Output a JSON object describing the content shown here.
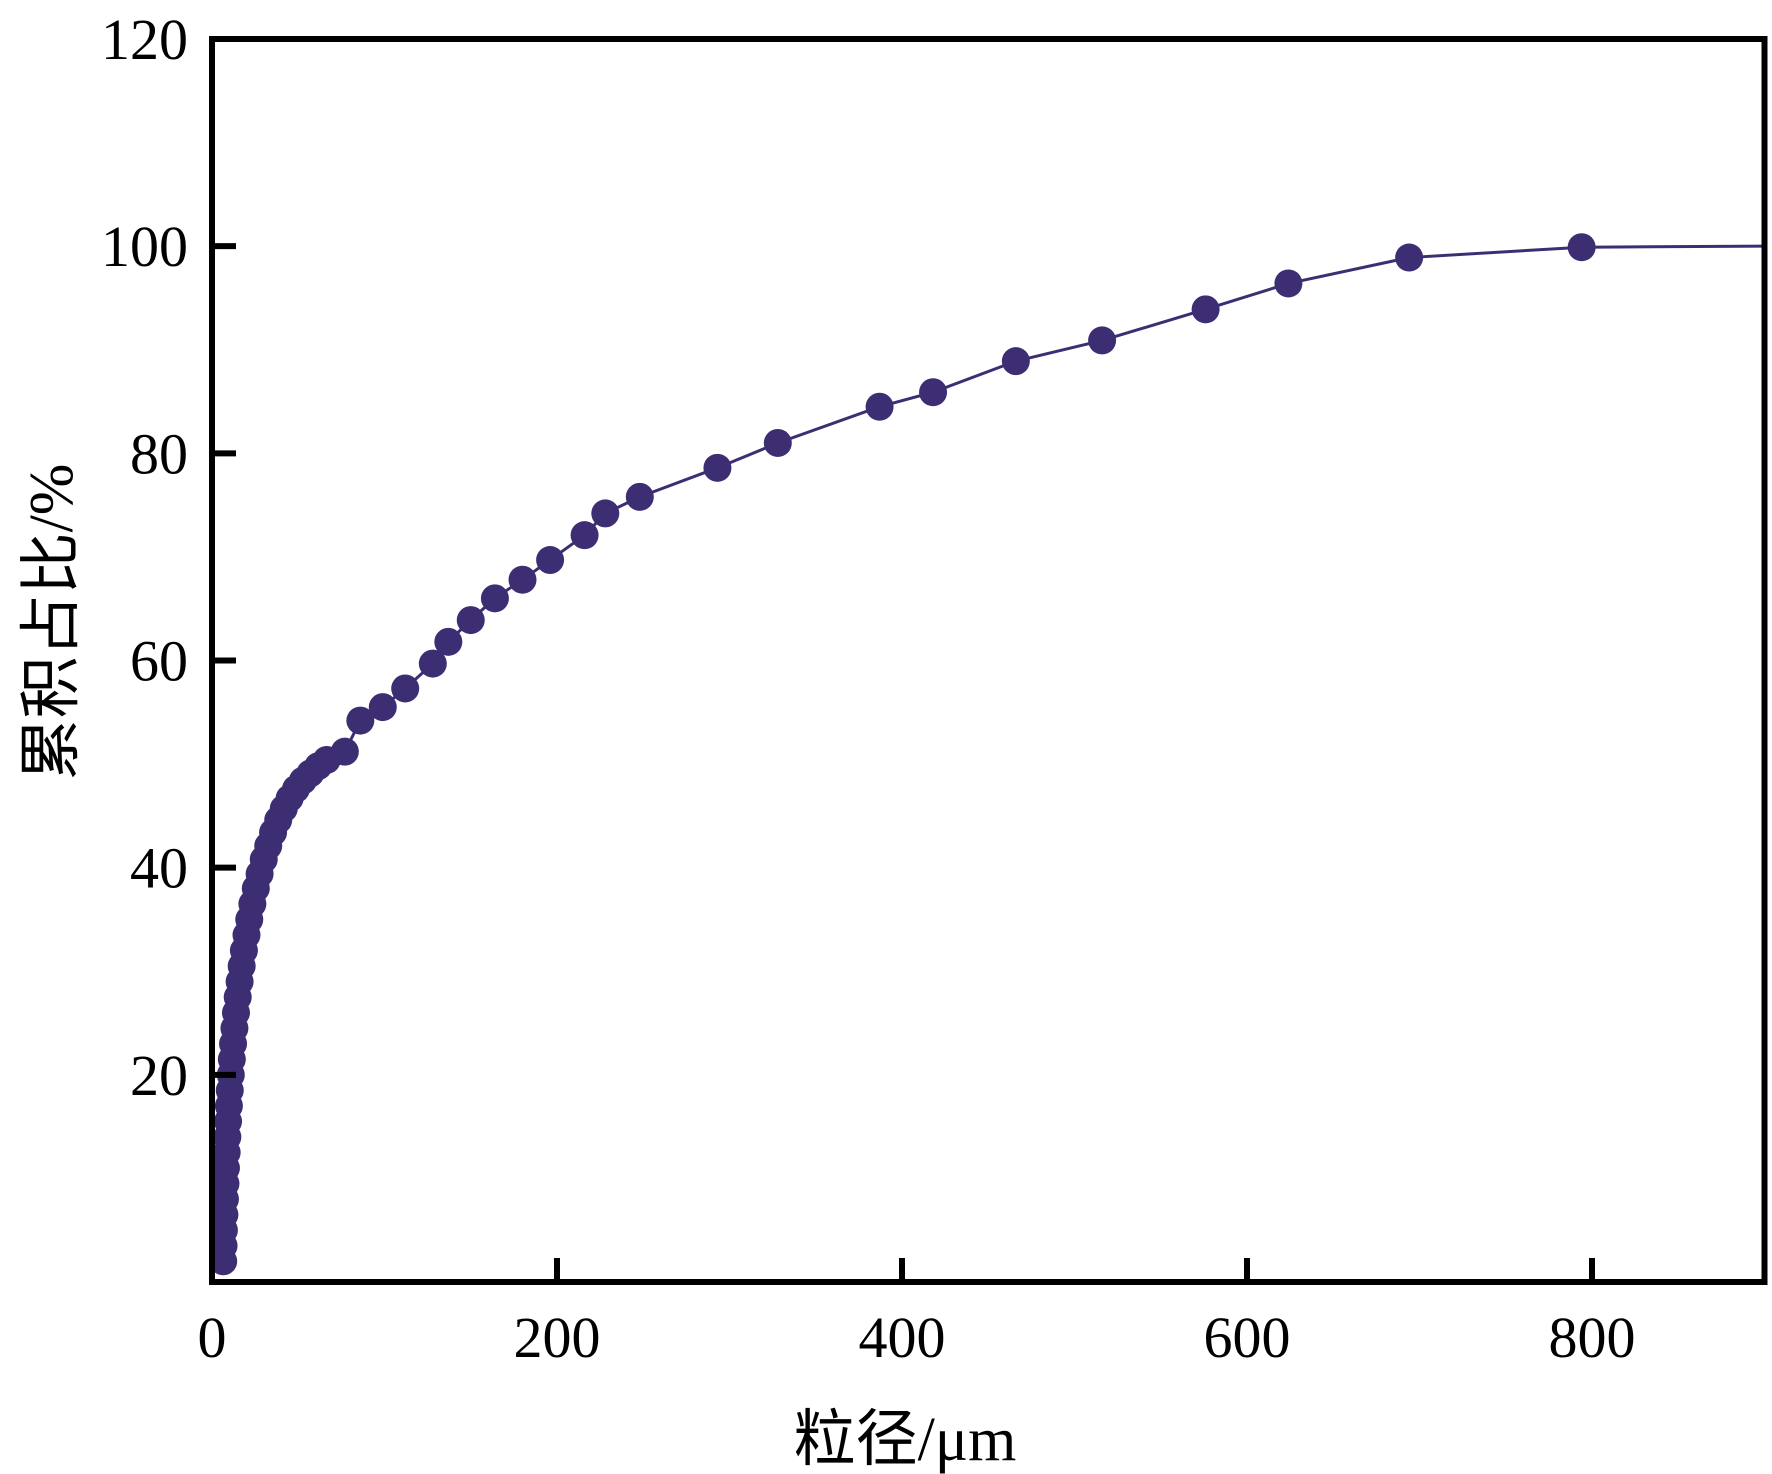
{
  "chart_data": {
    "type": "scatter",
    "title": "",
    "xlabel": "粒径/μm",
    "ylabel": "累积占比/%",
    "xlim": [
      0,
      900
    ],
    "ylim": [
      0,
      120
    ],
    "xticks": [
      0,
      200,
      400,
      600,
      800
    ],
    "yticks": [
      20,
      40,
      60,
      80,
      100,
      120
    ],
    "grid": false,
    "legend_position": "none",
    "marker_color": "#3d2e73",
    "line_color": "#3d2e73",
    "axis_color": "#000000",
    "background_color": "#ffffff",
    "marker_radius_px": 14,
    "series": [
      {
        "name": "cumulative-particle-size-distribution",
        "points": [
          [
            6.5,
            2
          ],
          [
            6.7,
            3.5
          ],
          [
            6.9,
            5
          ],
          [
            7.2,
            6.5
          ],
          [
            7.5,
            8
          ],
          [
            7.8,
            9.5
          ],
          [
            8.1,
            11
          ],
          [
            8.5,
            12.5
          ],
          [
            8.9,
            14
          ],
          [
            9.3,
            15.5
          ],
          [
            9.8,
            17
          ],
          [
            10.3,
            18.5
          ],
          [
            10.9,
            20
          ],
          [
            11.5,
            21.5
          ],
          [
            12.2,
            23
          ],
          [
            13,
            24.5
          ],
          [
            13.9,
            26
          ],
          [
            14.9,
            27.5
          ],
          [
            16,
            29
          ],
          [
            17.2,
            30.5
          ],
          [
            18.5,
            32
          ],
          [
            20,
            33.5
          ],
          [
            21.6,
            35
          ],
          [
            23.4,
            36.5
          ],
          [
            25.4,
            38
          ],
          [
            27.6,
            39.4
          ],
          [
            30,
            40.8
          ],
          [
            32.6,
            42.1
          ],
          [
            35.4,
            43.4
          ],
          [
            38.4,
            44.6
          ],
          [
            41.6,
            45.7
          ],
          [
            45,
            46.7
          ],
          [
            48.7,
            47.6
          ],
          [
            52.7,
            48.4
          ],
          [
            57,
            49.1
          ],
          [
            61.6,
            49.8
          ],
          [
            66.5,
            50.4
          ],
          [
            77,
            51.2
          ],
          [
            86,
            54.2
          ],
          [
            99,
            55.5
          ],
          [
            112,
            57.3
          ],
          [
            128,
            59.7
          ],
          [
            137,
            61.8
          ],
          [
            150,
            63.9
          ],
          [
            164,
            66.0
          ],
          [
            180,
            67.8
          ],
          [
            196,
            69.7
          ],
          [
            216,
            72.1
          ],
          [
            228,
            74.2
          ],
          [
            248,
            75.8
          ],
          [
            293,
            78.6
          ],
          [
            328,
            81.0
          ],
          [
            387,
            84.5
          ],
          [
            418,
            85.9
          ],
          [
            466,
            88.9
          ],
          [
            516,
            90.9
          ],
          [
            576,
            93.9
          ],
          [
            624,
            96.4
          ],
          [
            694,
            98.9
          ],
          [
            794,
            99.9
          ]
        ],
        "line_end": [
          900,
          100
        ]
      }
    ]
  }
}
